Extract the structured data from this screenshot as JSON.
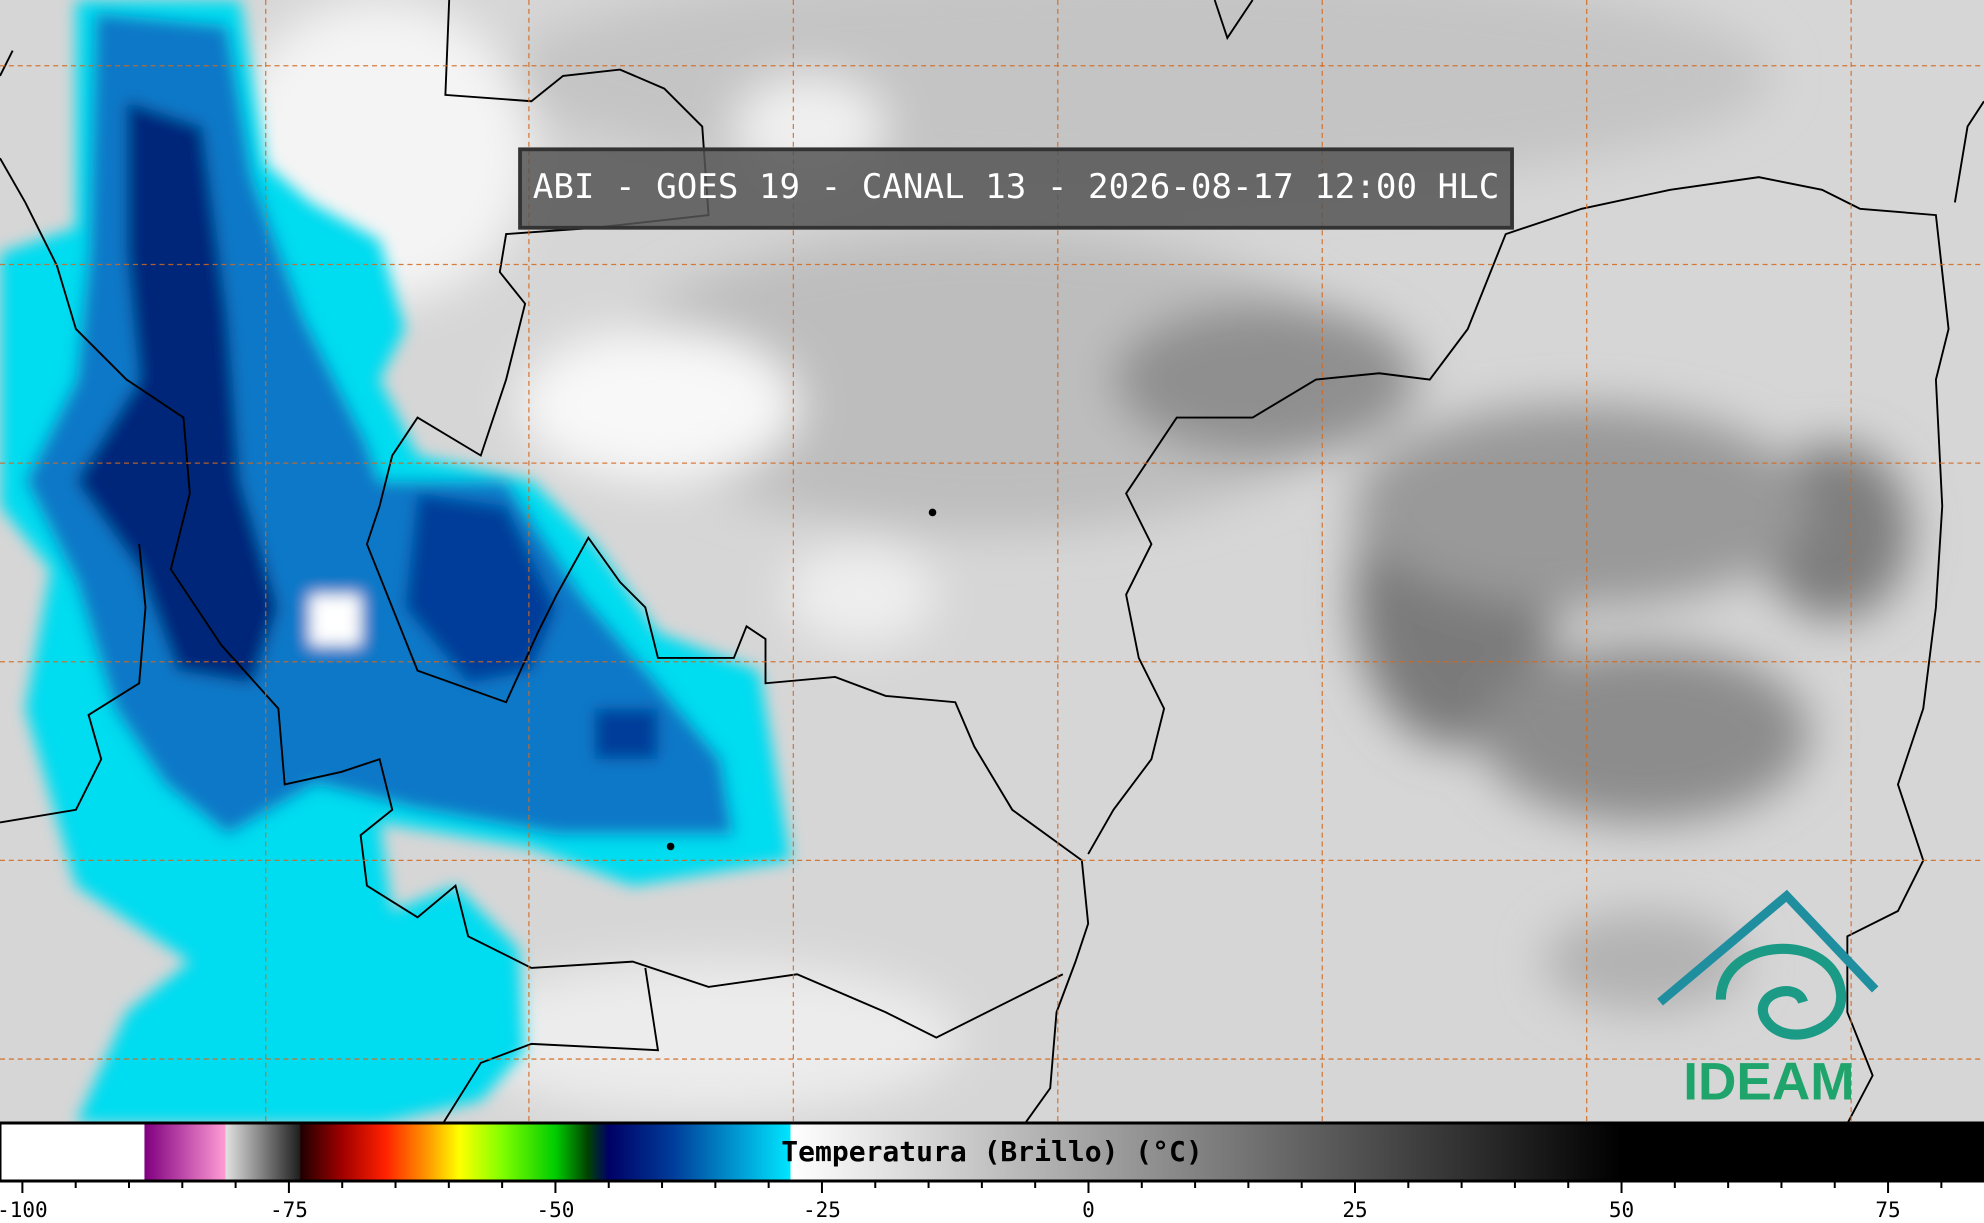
{
  "title": "ABI - GOES 19 - CANAL 13 - 2026-08-17 12:00 HLC",
  "logo": {
    "text": "IDEAM"
  },
  "colorbar": {
    "label": "Temperatura (Brillo) (°C)",
    "lim": [
      -102.1,
      84
    ],
    "ticks": [
      -100,
      -75,
      -50,
      -25,
      0,
      25,
      50,
      75
    ],
    "minor_ticks": [
      -95,
      -90,
      -85,
      -80,
      -70,
      -65,
      -60,
      -55,
      -45,
      -40,
      -35,
      -30,
      -20,
      -15,
      -10,
      -5,
      5,
      10,
      15,
      20,
      30,
      35,
      40,
      45,
      55,
      60,
      65,
      70,
      80
    ],
    "colorscale": [
      {
        "value": -102.1,
        "color": "#ffffff"
      },
      {
        "value": -88.6,
        "color": "#ffffff"
      },
      {
        "value": -88.5,
        "color": "#800080"
      },
      {
        "value": -81,
        "color": "#ff9ad5"
      },
      {
        "value": -80.9,
        "color": "#e0e0e0"
      },
      {
        "value": -74,
        "color": "#202020"
      },
      {
        "value": -73.9,
        "color": "#200000"
      },
      {
        "value": -70,
        "color": "#a00000"
      },
      {
        "value": -66,
        "color": "#ff2000"
      },
      {
        "value": -62,
        "color": "#ff9900"
      },
      {
        "value": -59,
        "color": "#ffff00"
      },
      {
        "value": -55,
        "color": "#80ff00"
      },
      {
        "value": -50,
        "color": "#00cc00"
      },
      {
        "value": -47,
        "color": "#004400"
      },
      {
        "value": -45,
        "color": "#000066"
      },
      {
        "value": -39,
        "color": "#003c9a"
      },
      {
        "value": -28,
        "color": "#00e5ff"
      },
      {
        "value": -27.9,
        "color": "#ffffff"
      },
      {
        "value": 50,
        "color": "#000000"
      },
      {
        "value": 84,
        "color": "#000000"
      }
    ]
  }
}
